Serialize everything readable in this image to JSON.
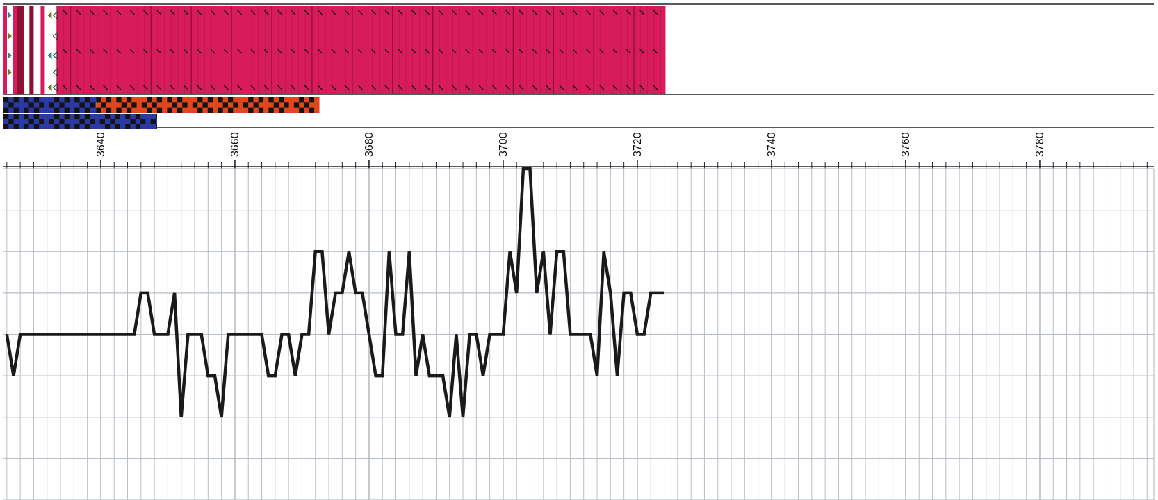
{
  "colors": {
    "block": "#d81b5a",
    "block_dark": "#8f0f33",
    "stripe_blue": "#2b39a6",
    "stripe_red": "#e2461d",
    "stripe_dark": "#141414",
    "tick_marker": "#111111",
    "tri_green": "#6b7d1f",
    "tri_teal": "#2a8a92",
    "grid": "#b9bec6",
    "line": "#1a1a1a",
    "frame": "#222222"
  },
  "chart_data": {
    "type": "line",
    "title": "",
    "xlabel": "",
    "ylabel": "",
    "x_ticks": [
      3640,
      3660,
      3680,
      3700,
      3720,
      3740,
      3760,
      3780
    ],
    "xlim": [
      3625.5,
      3797
    ],
    "ylim": [
      -4,
      4
    ],
    "y_gridlines": [
      -4,
      -3,
      -2,
      -1,
      0,
      1,
      2,
      3,
      4
    ],
    "minor_x_step": 2,
    "grid": true,
    "legend": "none",
    "series": [
      {
        "points": [
          [
            3626,
            0
          ],
          [
            3627,
            -1
          ],
          [
            3628,
            0
          ],
          [
            3629,
            0
          ],
          [
            3631,
            0
          ],
          [
            3635,
            0
          ],
          [
            3640,
            0
          ],
          [
            3644,
            0
          ],
          [
            3645,
            0
          ],
          [
            3646,
            1
          ],
          [
            3647,
            1
          ],
          [
            3648,
            0
          ],
          [
            3649,
            0
          ],
          [
            3650,
            0
          ],
          [
            3651,
            1
          ],
          [
            3652,
            -2
          ],
          [
            3653,
            0
          ],
          [
            3655,
            0
          ],
          [
            3656,
            -1
          ],
          [
            3657,
            -1
          ],
          [
            3658,
            -2
          ],
          [
            3659,
            0
          ],
          [
            3660,
            0
          ],
          [
            3663,
            0
          ],
          [
            3664,
            0
          ],
          [
            3665,
            -1
          ],
          [
            3666,
            -1
          ],
          [
            3667,
            0
          ],
          [
            3668,
            0
          ],
          [
            3669,
            -1
          ],
          [
            3670,
            0
          ],
          [
            3671,
            0
          ],
          [
            3672,
            2
          ],
          [
            3673,
            2
          ],
          [
            3674,
            0
          ],
          [
            3675,
            1
          ],
          [
            3676,
            1
          ],
          [
            3677,
            2
          ],
          [
            3678,
            1
          ],
          [
            3679,
            1
          ],
          [
            3681,
            -1
          ],
          [
            3682,
            -1
          ],
          [
            3683,
            2
          ],
          [
            3684,
            0
          ],
          [
            3685,
            0
          ],
          [
            3686,
            2
          ],
          [
            3687,
            -1
          ],
          [
            3688,
            0
          ],
          [
            3689,
            -1
          ],
          [
            3690,
            -1
          ],
          [
            3691,
            -1
          ],
          [
            3692,
            -2
          ],
          [
            3693,
            0
          ],
          [
            3694,
            -2
          ],
          [
            3695,
            0
          ],
          [
            3696,
            0
          ],
          [
            3697,
            -1
          ],
          [
            3698,
            0
          ],
          [
            3699,
            0
          ],
          [
            3700,
            0
          ],
          [
            3701,
            2
          ],
          [
            3702,
            1
          ],
          [
            3703,
            4
          ],
          [
            3704,
            4
          ],
          [
            3705,
            1
          ],
          [
            3706,
            2
          ],
          [
            3707,
            0
          ],
          [
            3708,
            2
          ],
          [
            3709,
            2
          ],
          [
            3710,
            0
          ],
          [
            3711,
            0
          ],
          [
            3712,
            0
          ],
          [
            3713,
            0
          ],
          [
            3714,
            -1
          ],
          [
            3715,
            2
          ],
          [
            3716,
            1
          ],
          [
            3717,
            -1
          ],
          [
            3718,
            1
          ],
          [
            3719,
            1
          ],
          [
            3720,
            0
          ],
          [
            3721,
            0
          ],
          [
            3722,
            1
          ],
          [
            3723,
            1
          ],
          [
            3724,
            1
          ]
        ]
      }
    ]
  },
  "tracks": {
    "feature_block": {
      "x_start": 3627.5,
      "x_end": 3724.2
    },
    "header_glyph_tracks": [
      {
        "x_start": 3625.5,
        "x_end": 3627.5,
        "pattern": "white-red"
      },
      {
        "x_start": 3627.5,
        "x_end": 3630.0,
        "pattern": "dark-red"
      },
      {
        "x_start": 3630.0,
        "x_end": 3633.4,
        "pattern": "white-triangles"
      }
    ],
    "stripe_rows": [
      {
        "x_start": 3625.5,
        "x_end": 3639.3,
        "color_key": "stripe_blue",
        "pattern": "checker"
      },
      {
        "x_start": 3639.3,
        "x_end": 3672.6,
        "color_key": "stripe_red",
        "pattern": "checker"
      },
      {
        "x_start": 3625.5,
        "x_end": 3648.4,
        "color_key": "stripe_blue",
        "pattern": "checker",
        "row": 2
      }
    ]
  }
}
